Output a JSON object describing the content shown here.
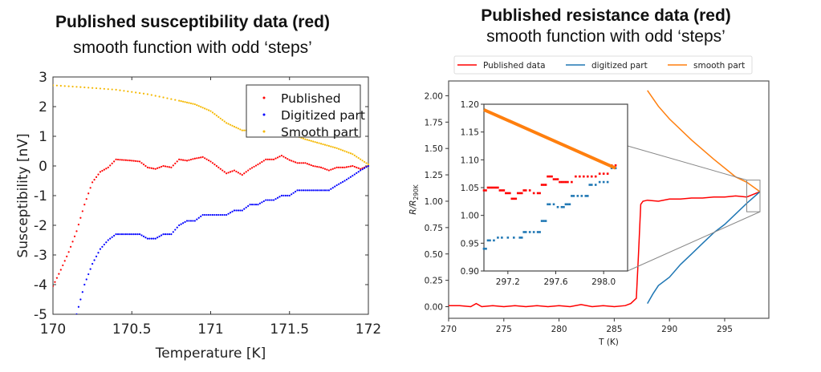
{
  "left": {
    "title": "Published susceptibility data (red)",
    "subtitle": "smooth function with odd ‘steps’"
  },
  "right": {
    "title": "Published resistance data (red)",
    "subtitle": "smooth function with odd ‘steps’"
  },
  "chart_data": [
    {
      "type": "scatter",
      "xlabel": "Temperature [K]",
      "ylabel": "Susceptibility [nV]",
      "xlim": [
        170,
        172
      ],
      "ylim": [
        -5,
        3
      ],
      "xticks": [
        "170",
        "170.5",
        "171",
        "171.5",
        "172"
      ],
      "xtick_values": [
        170,
        170.5,
        171,
        171.5,
        172
      ],
      "yticks": [
        "3",
        "2",
        "1",
        "0",
        "-1",
        "-2",
        "-3",
        "-4",
        "-5"
      ],
      "ytick_values": [
        3,
        2,
        1,
        0,
        -1,
        -2,
        -3,
        -4,
        -5
      ],
      "legend_placement": "top-right",
      "series": [
        {
          "name": "Published",
          "color": "#ff0000",
          "x": [
            170,
            170.05,
            170.1,
            170.15,
            170.2,
            170.25,
            170.3,
            170.35,
            170.4,
            170.45,
            170.5,
            170.55,
            170.6,
            170.65,
            170.7,
            170.75,
            170.8,
            170.85,
            170.9,
            170.95,
            171,
            171.05,
            171.1,
            171.15,
            171.2,
            171.25,
            171.3,
            171.35,
            171.4,
            171.45,
            171.5,
            171.55,
            171.6,
            171.65,
            171.7,
            171.75,
            171.8,
            171.85,
            171.9,
            171.95,
            172
          ],
          "y": [
            -4.05,
            -3.5,
            -2.9,
            -2.2,
            -1.3,
            -0.55,
            -0.2,
            -0.05,
            0.22,
            0.2,
            0.18,
            0.15,
            -0.05,
            -0.1,
            0.0,
            -0.05,
            0.22,
            0.18,
            0.25,
            0.3,
            0.15,
            -0.05,
            -0.25,
            -0.15,
            -0.3,
            -0.1,
            0.05,
            0.22,
            0.22,
            0.35,
            0.2,
            0.1,
            0.1,
            0.0,
            -0.05,
            -0.15,
            -0.05,
            -0.05,
            0.0,
            -0.1,
            0.0
          ]
        },
        {
          "name": "Digitized part",
          "color": "#0000ff",
          "x": [
            170.15,
            170.2,
            170.25,
            170.3,
            170.35,
            170.4,
            170.45,
            170.5,
            170.55,
            170.6,
            170.65,
            170.7,
            170.75,
            170.8,
            170.85,
            170.9,
            170.95,
            171,
            171.05,
            171.1,
            171.15,
            171.2,
            171.25,
            171.3,
            171.35,
            171.4,
            171.45,
            171.5,
            171.55,
            171.6,
            171.65,
            171.7,
            171.75,
            171.8,
            171.85,
            171.9,
            171.95,
            172
          ],
          "y": [
            -5.0,
            -4.0,
            -3.3,
            -2.8,
            -2.5,
            -2.3,
            -2.3,
            -2.3,
            -2.3,
            -2.45,
            -2.45,
            -2.3,
            -2.3,
            -2.0,
            -1.85,
            -1.85,
            -1.65,
            -1.65,
            -1.65,
            -1.65,
            -1.5,
            -1.5,
            -1.3,
            -1.3,
            -1.15,
            -1.15,
            -1.0,
            -1.0,
            -0.82,
            -0.82,
            -0.82,
            -0.82,
            -0.82,
            -0.65,
            -0.5,
            -0.33,
            -0.15,
            0.0
          ]
        },
        {
          "name": "Smooth part",
          "color": "#f5b800",
          "x": [
            170,
            170.2,
            170.4,
            170.6,
            170.8,
            170.9,
            171,
            171.1,
            171.2,
            171.3,
            171.4,
            171.5,
            171.6,
            171.7,
            171.8,
            171.9,
            172
          ],
          "y": [
            2.72,
            2.65,
            2.57,
            2.42,
            2.2,
            2.08,
            1.85,
            1.45,
            1.2,
            1.2,
            1.2,
            1.1,
            0.9,
            0.75,
            0.6,
            0.4,
            0.05
          ]
        }
      ]
    },
    {
      "type": "line",
      "xlabel": "T (K)",
      "ylabel": "R/R290K",
      "ylabel_main": "R/R",
      "ylabel_sub": "290K",
      "xlim": [
        270,
        299
      ],
      "ylim": [
        -0.11,
        2.14
      ],
      "xticks": [
        "270",
        "275",
        "280",
        "285",
        "290",
        "295"
      ],
      "xtick_values": [
        270,
        275,
        280,
        285,
        290,
        295
      ],
      "yticks": [
        "0.00",
        "0.25",
        "0.50",
        "0.75",
        "1.00",
        "1.25",
        "1.50",
        "1.75",
        "2.00"
      ],
      "ytick_values": [
        0,
        0.25,
        0.5,
        0.75,
        1.0,
        1.25,
        1.5,
        1.75,
        2.0
      ],
      "legend_placement": "top-outside",
      "series": [
        {
          "name": "Published data",
          "color": "#ff0000",
          "x": [
            270,
            271,
            272,
            272.5,
            273,
            274,
            275,
            276,
            277,
            278,
            279,
            280,
            281,
            282,
            283,
            284,
            285,
            286,
            286.5,
            287,
            287.2,
            287.4,
            287.6,
            288,
            289,
            290,
            291,
            292,
            293,
            294,
            295,
            296,
            297,
            298.2
          ],
          "y": [
            0.01,
            0.01,
            0.0,
            0.03,
            0.0,
            0.01,
            0.0,
            0.01,
            0.0,
            0.01,
            0.0,
            0.01,
            0.0,
            0.02,
            0.0,
            0.01,
            0.0,
            0.01,
            0.03,
            0.08,
            0.5,
            0.97,
            1.0,
            1.01,
            1.0,
            1.02,
            1.02,
            1.03,
            1.03,
            1.04,
            1.04,
            1.05,
            1.04,
            1.09
          ]
        },
        {
          "name": "digitized part",
          "color": "#1f77b4",
          "x": [
            288,
            288.5,
            289,
            290,
            291,
            292,
            293,
            294,
            295,
            296,
            297,
            298.2
          ],
          "y": [
            0.03,
            0.12,
            0.2,
            0.28,
            0.4,
            0.5,
            0.6,
            0.7,
            0.78,
            0.88,
            0.98,
            1.09
          ]
        },
        {
          "name": "smooth part",
          "color": "#ff7f0e",
          "x": [
            288,
            289,
            290,
            292,
            294,
            296,
            297,
            298.2
          ],
          "y": [
            2.05,
            1.9,
            1.78,
            1.58,
            1.4,
            1.23,
            1.18,
            1.09
          ]
        }
      ],
      "inset": {
        "xlim": [
          297.0,
          298.2
        ],
        "ylim": [
          0.9,
          1.2
        ],
        "xticks": [
          "297.2",
          "297.6",
          "298.0"
        ],
        "xtick_values": [
          297.2,
          297.6,
          298.0
        ],
        "yticks": [
          "0.90",
          "0.95",
          "1.00",
          "1.05",
          "1.10",
          "1.15",
          "1.20"
        ],
        "ytick_values": [
          0.9,
          0.95,
          1.0,
          1.05,
          1.1,
          1.15,
          1.2
        ],
        "series": [
          {
            "name": "Published data",
            "color": "#ff0000",
            "x": [
              297.0,
              297.05,
              297.1,
              297.15,
              297.2,
              297.25,
              297.3,
              297.35,
              297.45,
              297.5,
              297.55,
              297.6,
              297.65,
              297.7,
              297.8,
              297.9,
              298.0,
              298.1
            ],
            "y": [
              1.045,
              1.05,
              1.05,
              1.045,
              1.04,
              1.03,
              1.04,
              1.045,
              1.04,
              1.055,
              1.07,
              1.065,
              1.06,
              1.06,
              1.07,
              1.07,
              1.075,
              1.09
            ]
          },
          {
            "name": "digitized part",
            "color": "#1f77b4",
            "x": [
              297.0,
              297.05,
              297.15,
              297.3,
              297.35,
              297.45,
              297.5,
              297.55,
              297.65,
              297.7,
              297.75,
              297.85,
              297.9,
              298.0,
              298.1
            ],
            "y": [
              0.94,
              0.955,
              0.96,
              0.96,
              0.97,
              0.97,
              0.99,
              1.02,
              1.015,
              1.02,
              1.035,
              1.035,
              1.055,
              1.06,
              1.085
            ]
          },
          {
            "name": "smooth part",
            "color": "#ff7f0e",
            "x": [
              297.0,
              298.1
            ],
            "y": [
              1.19,
              1.085
            ]
          }
        ]
      }
    }
  ]
}
